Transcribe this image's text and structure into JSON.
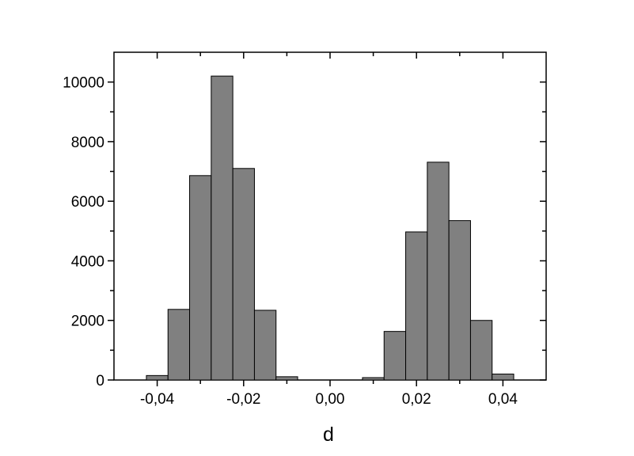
{
  "chart_data": {
    "type": "bar",
    "title": "",
    "xlabel": "d",
    "ylabel": "",
    "xlim": [
      -0.05,
      0.05
    ],
    "ylim": [
      0,
      11000
    ],
    "bin_width": 0.005,
    "bins": [
      {
        "center": -0.04,
        "count": 150
      },
      {
        "center": -0.035,
        "count": 2370
      },
      {
        "center": -0.03,
        "count": 6860
      },
      {
        "center": -0.025,
        "count": 10200
      },
      {
        "center": -0.02,
        "count": 7100
      },
      {
        "center": -0.015,
        "count": 2340
      },
      {
        "center": -0.01,
        "count": 110
      },
      {
        "center": 0.01,
        "count": 80
      },
      {
        "center": 0.015,
        "count": 1630
      },
      {
        "center": 0.02,
        "count": 4970
      },
      {
        "center": 0.025,
        "count": 7310
      },
      {
        "center": 0.03,
        "count": 5350
      },
      {
        "center": 0.035,
        "count": 2000
      },
      {
        "center": 0.04,
        "count": 200
      }
    ],
    "x_ticks": [
      {
        "value": -0.04,
        "label": "-0,04"
      },
      {
        "value": -0.02,
        "label": "-0,02"
      },
      {
        "value": 0.0,
        "label": "0,00"
      },
      {
        "value": 0.02,
        "label": "0,02"
      },
      {
        "value": 0.04,
        "label": "0,04"
      }
    ],
    "y_ticks": [
      {
        "value": 0,
        "label": "0"
      },
      {
        "value": 2000,
        "label": "2000"
      },
      {
        "value": 4000,
        "label": "4000"
      },
      {
        "value": 6000,
        "label": "6000"
      },
      {
        "value": 8000,
        "label": "8000"
      },
      {
        "value": 10000,
        "label": "10000"
      }
    ],
    "grid": false,
    "legend": "none",
    "colors": {
      "bar_fill": "#808080",
      "bar_stroke": "#000000",
      "axis": "#000000"
    }
  }
}
